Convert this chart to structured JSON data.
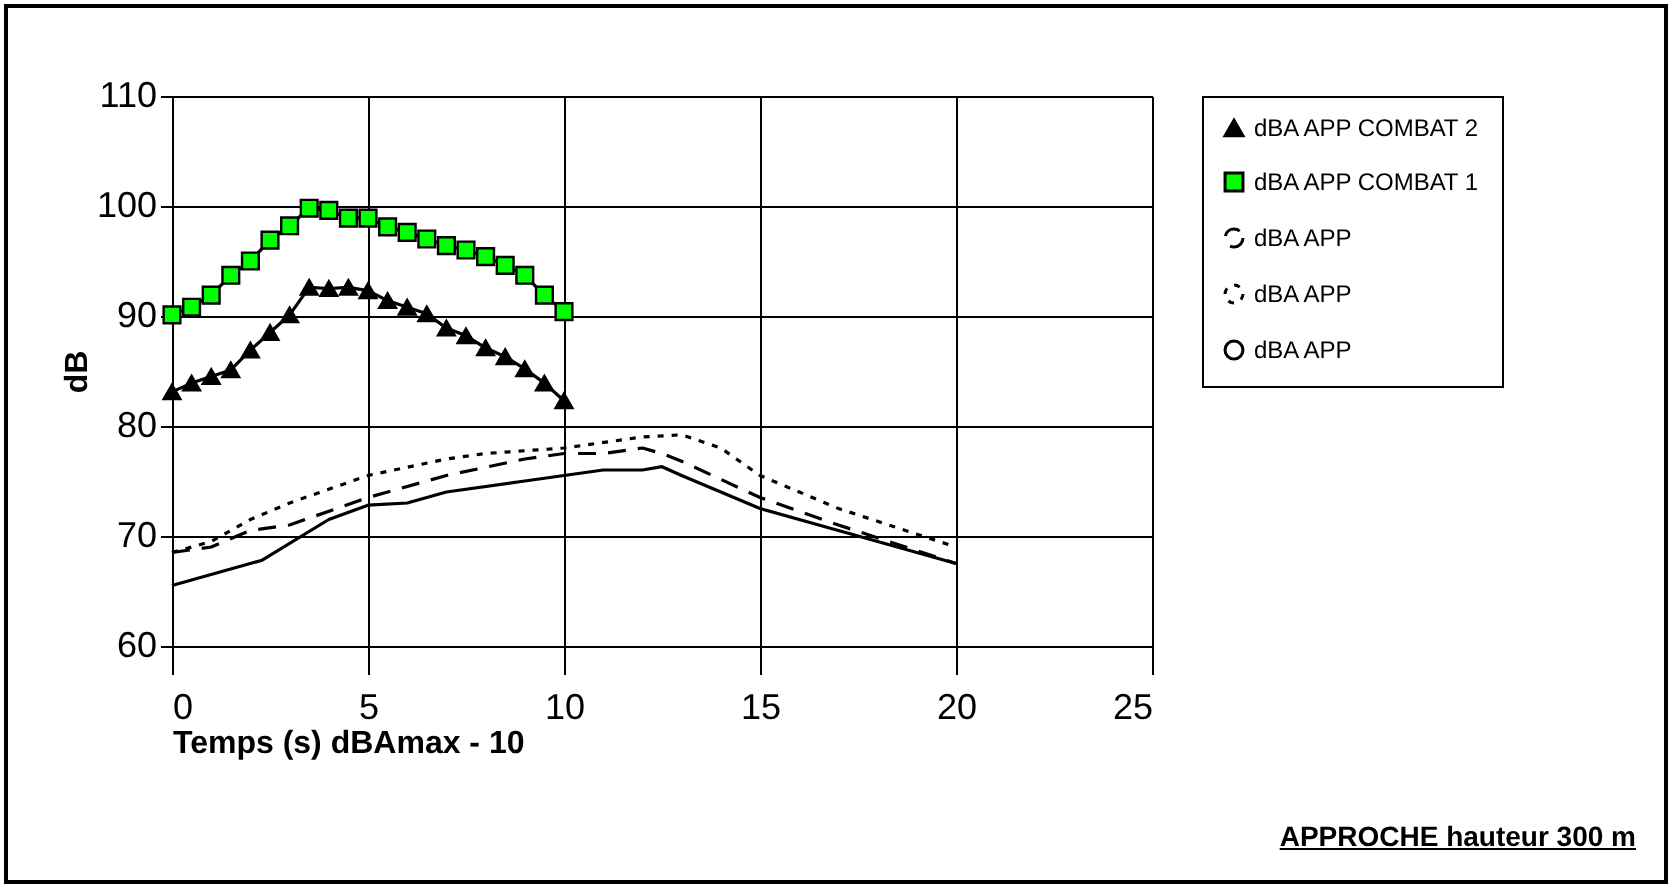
{
  "chart_data": {
    "type": "line",
    "xlabel": "Temps (s) dBAmax - 10",
    "ylabel": "dB",
    "xlim": [
      0,
      25
    ],
    "xticks": [
      0,
      5,
      10,
      15,
      20,
      25
    ],
    "ylim": [
      60,
      110
    ],
    "yticks": [
      60,
      70,
      80,
      90,
      100,
      110
    ],
    "grid": true,
    "legend": "right",
    "annotations": [
      "APPROCHE hauteur 300 m"
    ],
    "series": [
      {
        "name": "dBA APP COMBAT 2",
        "color": "#000000",
        "marker": "triangle",
        "line_style": "solid",
        "x": [
          0,
          0.5,
          1,
          1.5,
          2,
          2.5,
          3,
          3.5,
          4,
          4.5,
          5,
          5.5,
          6,
          6.5,
          7,
          7.5,
          8,
          8.5,
          9,
          9.5,
          10
        ],
        "values": [
          83.1,
          83.9,
          84.5,
          85.1,
          86.9,
          88.5,
          90.1,
          92.6,
          92.5,
          92.6,
          92.3,
          91.4,
          90.8,
          90.2,
          88.9,
          88.2,
          87.1,
          86.3,
          85.2,
          83.9,
          82.3
        ]
      },
      {
        "name": "dBA APP COMBAT 1",
        "color": "#00ff00",
        "marker": "square",
        "line_style": "solid",
        "x": [
          0,
          0.5,
          1,
          1.5,
          2,
          2.5,
          3,
          3.5,
          4,
          4.5,
          5,
          5.5,
          6,
          6.5,
          7,
          7.5,
          8,
          8.5,
          9,
          9.5,
          10
        ],
        "values": [
          90.1,
          90.8,
          91.9,
          93.7,
          95.0,
          96.9,
          98.2,
          99.8,
          99.6,
          98.9,
          98.9,
          98.1,
          97.6,
          97.0,
          96.4,
          96.0,
          95.4,
          94.6,
          93.7,
          91.9,
          90.4
        ]
      },
      {
        "name": "dBA APP",
        "color": "#000000",
        "marker": "none",
        "line_style": "dashed",
        "x": [
          0,
          1,
          2,
          3,
          5,
          7,
          9,
          10,
          11,
          12,
          12.5,
          13,
          15,
          17,
          20
        ],
        "values": [
          68.5,
          69,
          70.5,
          71,
          73.5,
          75.5,
          77,
          77.5,
          77.5,
          78,
          77.5,
          76.8,
          73.5,
          71,
          67.5
        ]
      },
      {
        "name": "dBA APP",
        "color": "#000000",
        "marker": "none",
        "line_style": "dotted",
        "x": [
          0,
          1,
          2,
          3,
          5,
          7,
          8,
          10,
          12,
          13,
          14,
          15,
          17,
          20
        ],
        "values": [
          68.5,
          69.5,
          71.5,
          73,
          75.5,
          77,
          77.5,
          78,
          79,
          79.2,
          78,
          75.5,
          72.5,
          69
        ]
      },
      {
        "name": "dBA APP",
        "color": "#000000",
        "marker": "none",
        "line_style": "solid",
        "x": [
          0,
          2.3,
          4,
          5,
          6,
          7,
          9,
          10,
          11,
          12,
          12.5,
          13,
          15,
          17,
          20
        ],
        "values": [
          65.5,
          67.8,
          71.5,
          72.8,
          73,
          74,
          75,
          75.5,
          76,
          76,
          76.3,
          75.5,
          72.5,
          70.5,
          67.5
        ]
      }
    ]
  }
}
